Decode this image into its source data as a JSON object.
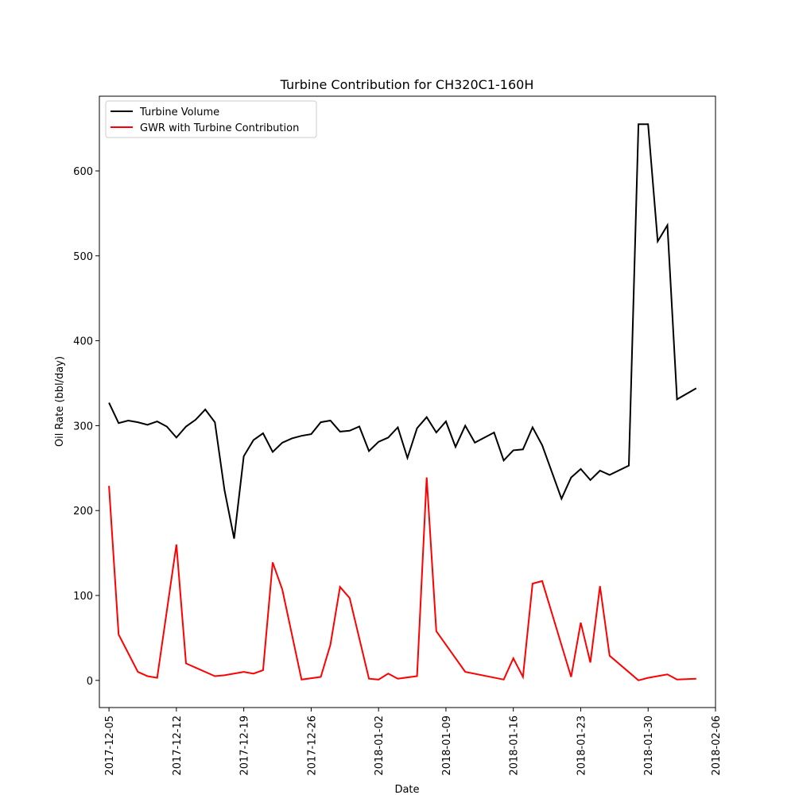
{
  "chart_data": {
    "type": "line",
    "title": "Turbine Contribution for CH320C1-160H",
    "xlabel": "Date",
    "ylabel": "Oil Rate (bbl/day)",
    "xlim": [
      "2017-12-04",
      "2018-02-06"
    ],
    "ylim": [
      -32,
      688
    ],
    "x_ticks": [
      "2017-12-05",
      "2017-12-12",
      "2017-12-19",
      "2017-12-26",
      "2018-01-02",
      "2018-01-09",
      "2018-01-16",
      "2018-01-23",
      "2018-01-30",
      "2018-02-06"
    ],
    "y_ticks": [
      0,
      100,
      200,
      300,
      400,
      500,
      600
    ],
    "grid": false,
    "legend": "upper-left",
    "series": [
      {
        "name": "Turbine Volume",
        "color": "#000000",
        "points": [
          [
            "2017-12-05",
            327
          ],
          [
            "2017-12-06",
            303
          ],
          [
            "2017-12-07",
            306
          ],
          [
            "2017-12-08",
            304
          ],
          [
            "2017-12-09",
            301
          ],
          [
            "2017-12-10",
            305
          ],
          [
            "2017-12-11",
            299
          ],
          [
            "2017-12-12",
            286
          ],
          [
            "2017-12-13",
            299
          ],
          [
            "2017-12-14",
            307
          ],
          [
            "2017-12-15",
            319
          ],
          [
            "2017-12-16",
            304
          ],
          [
            "2017-12-17",
            224
          ],
          [
            "2017-12-18",
            167
          ],
          [
            "2017-12-19",
            264
          ],
          [
            "2017-12-20",
            283
          ],
          [
            "2017-12-21",
            291
          ],
          [
            "2017-12-22",
            269
          ],
          [
            "2017-12-23",
            280
          ],
          [
            "2017-12-24",
            285
          ],
          [
            "2017-12-25",
            288
          ],
          [
            "2017-12-26",
            290
          ],
          [
            "2017-12-27",
            304
          ],
          [
            "2017-12-28",
            306
          ],
          [
            "2017-12-29",
            293
          ],
          [
            "2017-12-30",
            294
          ],
          [
            "2017-12-31",
            299
          ],
          [
            "2018-01-01",
            270
          ],
          [
            "2018-01-02",
            281
          ],
          [
            "2018-01-03",
            286
          ],
          [
            "2018-01-04",
            298
          ],
          [
            "2018-01-05",
            262
          ],
          [
            "2018-01-06",
            297
          ],
          [
            "2018-01-07",
            310
          ],
          [
            "2018-01-08",
            292
          ],
          [
            "2018-01-09",
            305
          ],
          [
            "2018-01-10",
            275
          ],
          [
            "2018-01-11",
            300
          ],
          [
            "2018-01-12",
            280
          ],
          [
            "2018-01-14",
            292
          ],
          [
            "2018-01-15",
            259
          ],
          [
            "2018-01-16",
            271
          ],
          [
            "2018-01-17",
            272
          ],
          [
            "2018-01-18",
            298
          ],
          [
            "2018-01-19",
            277
          ],
          [
            "2018-01-21",
            214
          ],
          [
            "2018-01-22",
            239
          ],
          [
            "2018-01-23",
            249
          ],
          [
            "2018-01-24",
            236
          ],
          [
            "2018-01-25",
            247
          ],
          [
            "2018-01-26",
            242
          ],
          [
            "2018-01-28",
            253
          ],
          [
            "2018-01-29",
            655
          ],
          [
            "2018-01-30",
            655
          ],
          [
            "2018-01-31",
            517
          ],
          [
            "2018-02-01",
            536
          ],
          [
            "2018-02-02",
            331
          ],
          [
            "2018-02-04",
            344
          ]
        ]
      },
      {
        "name": "GWR with Turbine Contribution",
        "color": "#ff0000",
        "points": [
          [
            "2017-12-05",
            229
          ],
          [
            "2017-12-06",
            54
          ],
          [
            "2017-12-08",
            10
          ],
          [
            "2017-12-09",
            5
          ],
          [
            "2017-12-10",
            3
          ],
          [
            "2017-12-12",
            160
          ],
          [
            "2017-12-13",
            20
          ],
          [
            "2017-12-16",
            5
          ],
          [
            "2017-12-17",
            6
          ],
          [
            "2017-12-19",
            10
          ],
          [
            "2017-12-20",
            8
          ],
          [
            "2017-12-21",
            12
          ],
          [
            "2017-12-22",
            139
          ],
          [
            "2017-12-23",
            107
          ],
          [
            "2017-12-25",
            1
          ],
          [
            "2017-12-27",
            4
          ],
          [
            "2017-12-28",
            42
          ],
          [
            "2017-12-29",
            110
          ],
          [
            "2017-12-30",
            97
          ],
          [
            "2018-01-01",
            2
          ],
          [
            "2018-01-02",
            1
          ],
          [
            "2018-01-03",
            8
          ],
          [
            "2018-01-04",
            2
          ],
          [
            "2018-01-06",
            5
          ],
          [
            "2018-01-07",
            239
          ],
          [
            "2018-01-08",
            58
          ],
          [
            "2018-01-11",
            10
          ],
          [
            "2018-01-15",
            1
          ],
          [
            "2018-01-16",
            26
          ],
          [
            "2018-01-17",
            4
          ],
          [
            "2018-01-18",
            114
          ],
          [
            "2018-01-19",
            117
          ],
          [
            "2018-01-22",
            4
          ],
          [
            "2018-01-23",
            68
          ],
          [
            "2018-01-24",
            21
          ],
          [
            "2018-01-25",
            111
          ],
          [
            "2018-01-26",
            29
          ],
          [
            "2018-01-29",
            0
          ],
          [
            "2018-01-30",
            3
          ],
          [
            "2018-02-01",
            7
          ],
          [
            "2018-02-02",
            1
          ],
          [
            "2018-02-04",
            2
          ]
        ]
      }
    ]
  }
}
